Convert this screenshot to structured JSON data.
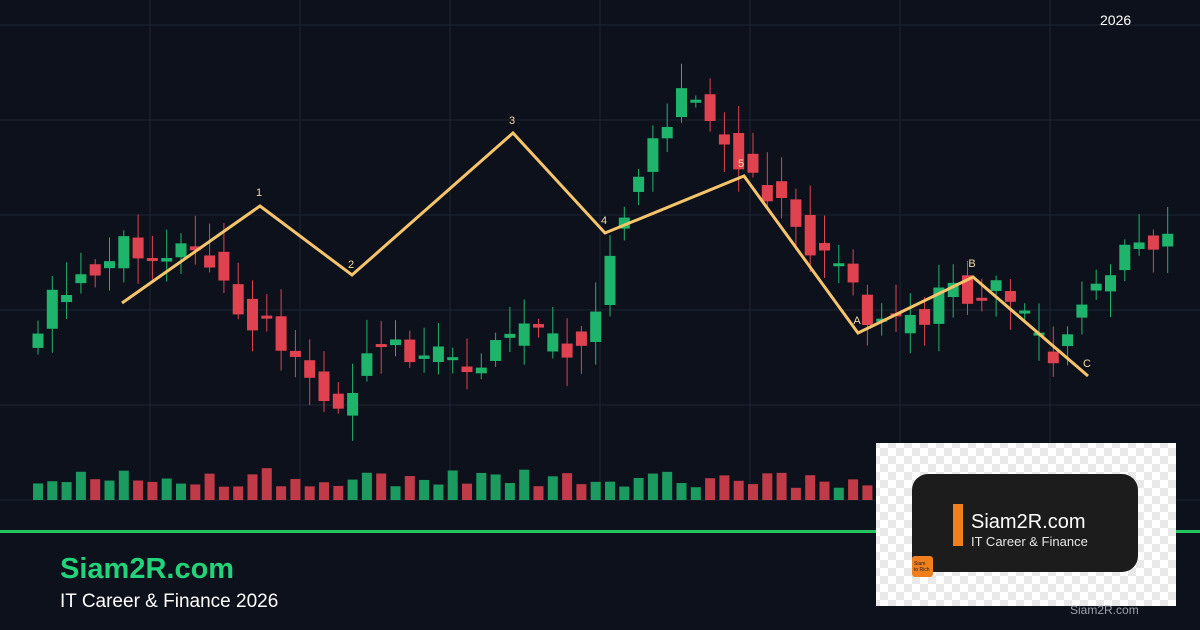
{
  "header": {
    "year": "2026"
  },
  "wave_labels": [
    "1",
    "2",
    "3",
    "4",
    "5",
    "A",
    "B",
    "C"
  ],
  "footer": {
    "brand": "Siam2R.com",
    "tagline": "IT Career & Finance 2026"
  },
  "logo": {
    "brand": "Siam2R.com",
    "tagline": "IT Career & Finance",
    "badge": [
      "Siam",
      "to Rich"
    ]
  },
  "watermark": "Siam2R.com"
}
